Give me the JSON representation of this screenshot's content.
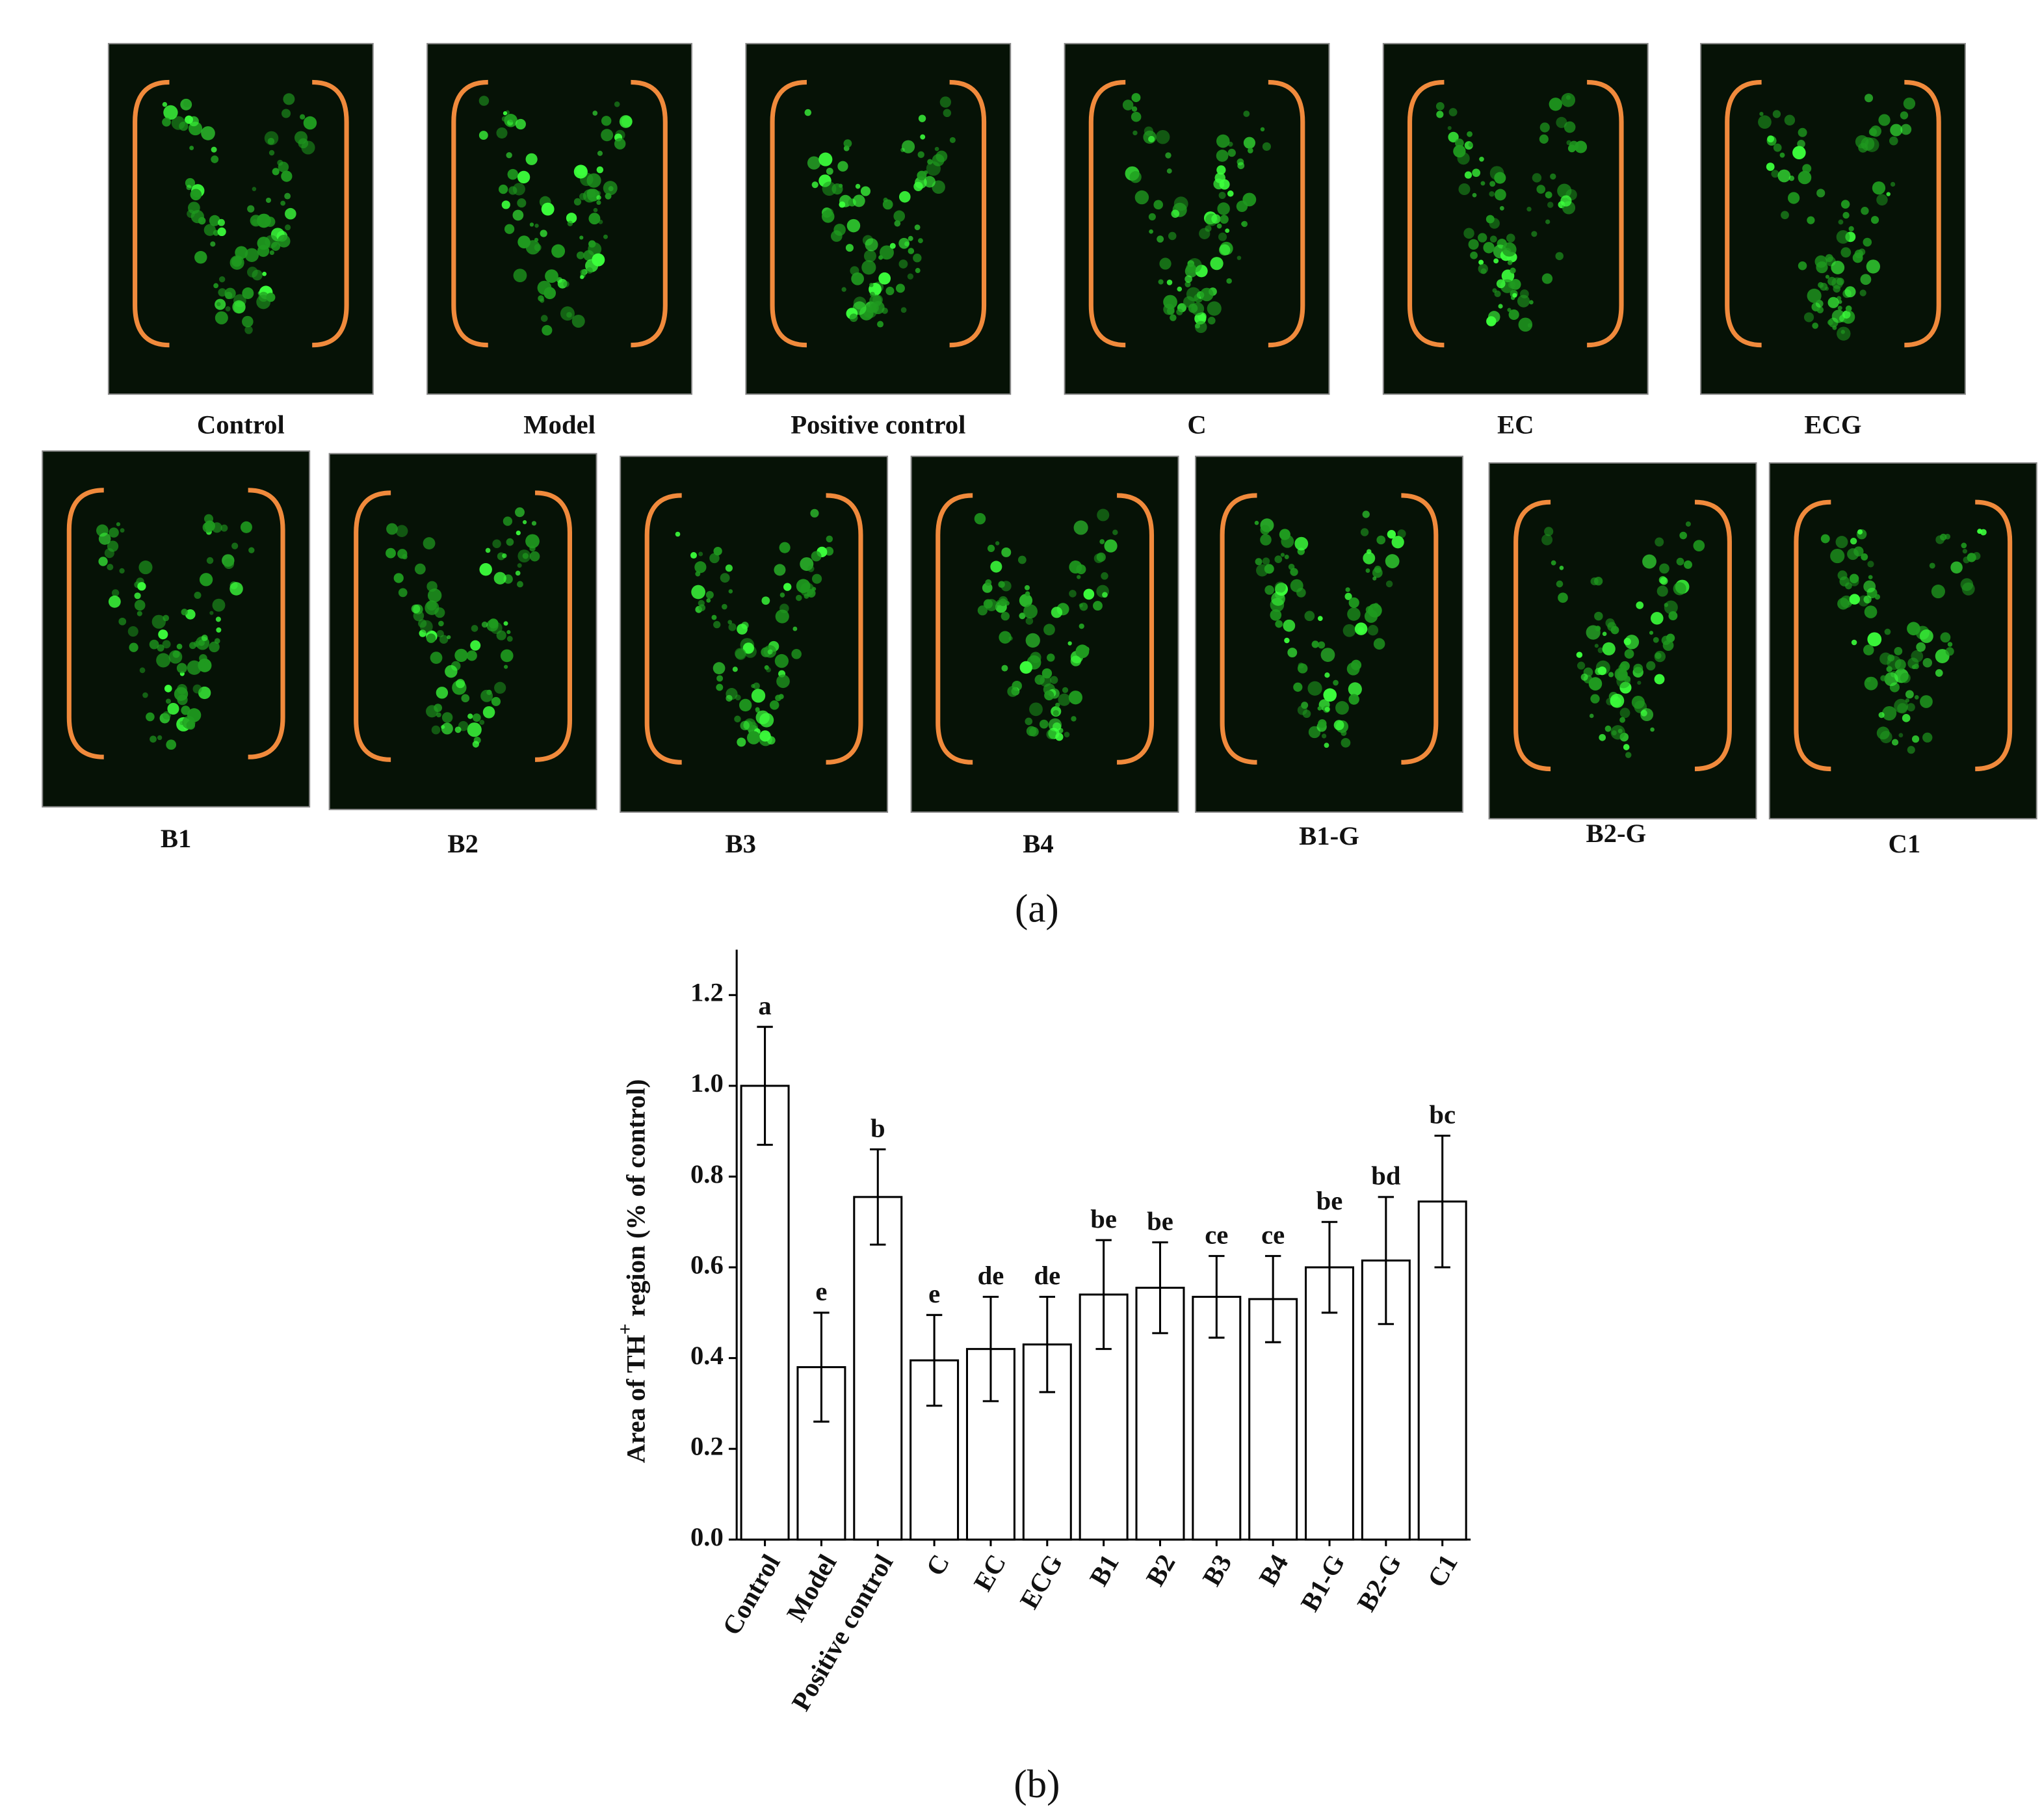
{
  "panel_a": {
    "label": "(a)",
    "images_row_1": [
      "Control",
      "Model",
      "Positive control",
      "C",
      "EC",
      "ECG"
    ],
    "images_row_2": [
      "B1",
      "B2",
      "B3",
      "B4",
      "B1-G",
      "B2-G",
      "C1"
    ]
  },
  "panel_b": {
    "label": "(b)"
  },
  "chart_data": {
    "type": "bar",
    "ylabel": "Area of TH",
    "ylabel_superscript": "+",
    "ylabel_rest": "region (% of control)",
    "categories": [
      "Control",
      "Model",
      "Positive control",
      "C",
      "EC",
      "ECG",
      "B1",
      "B2",
      "B3",
      "B4",
      "B1-G",
      "B2-G",
      "C1"
    ],
    "values": [
      1.0,
      0.38,
      0.755,
      0.395,
      0.42,
      0.43,
      0.54,
      0.555,
      0.535,
      0.53,
      0.6,
      0.615,
      0.745
    ],
    "errors": [
      0.13,
      0.12,
      0.105,
      0.1,
      0.115,
      0.105,
      0.12,
      0.1,
      0.09,
      0.095,
      0.1,
      0.14,
      0.145
    ],
    "significance_letters": [
      "a",
      "e",
      "b",
      "e",
      "de",
      "de",
      "be",
      "be",
      "ce",
      "ce",
      "be",
      "bd",
      "bc"
    ],
    "color": "#ffffff",
    "ylim": [
      0,
      1.3
    ],
    "yticks": [
      {
        "value": 0,
        "label": "0.0"
      },
      0.2,
      0.4,
      0.6,
      0.8,
      {
        "value": 1,
        "label": "1.0"
      },
      1.2
    ]
  }
}
